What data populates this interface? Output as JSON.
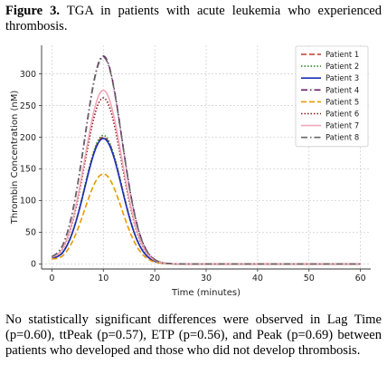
{
  "caption": {
    "figure_label": "Figure 3.",
    "text": " TGA in patients with acute leukemia who experienced thrombosis."
  },
  "note": "No statistically significant differences were observed in Lag Time (p=0.60), ttPeak (p=0.57), ETP (p=0.56), and Peak (p=0.69) between patients who developed and those who did not develop thrombosis.",
  "chart_data": {
    "type": "line",
    "xlabel": "Time (minutes)",
    "ylabel": "Thrombin Concentration (nM)",
    "xlim": [
      -2,
      62
    ],
    "ylim": [
      -8,
      345
    ],
    "xticks": [
      0,
      10,
      20,
      30,
      40,
      50,
      60
    ],
    "yticks": [
      0,
      50,
      100,
      150,
      200,
      250,
      300
    ],
    "grid": true,
    "legend_position": "top-right",
    "curve_shape": "gaussian peak at 10 min, baseline 0 after ~22 min",
    "series": [
      {
        "name": "Patient 1",
        "peak": 200,
        "peak_time": 10,
        "color": "#c0392b",
        "dash": "6,3"
      },
      {
        "name": "Patient 2",
        "peak": 203,
        "peak_time": 10,
        "color": "#2e8b2e",
        "dash": "1.5,2"
      },
      {
        "name": "Patient 3",
        "peak": 198,
        "peak_time": 10,
        "color": "#1c2fb5",
        "dash": ""
      },
      {
        "name": "Patient 4",
        "peak": 328,
        "peak_time": 10,
        "color": "#6a1b6a",
        "dash": "7,3,1.5,3"
      },
      {
        "name": "Patient 5",
        "peak": 142,
        "peak_time": 10,
        "color": "#e69b00",
        "dash": "6,3"
      },
      {
        "name": "Patient 6",
        "peak": 262,
        "peak_time": 10,
        "color": "#8b1a1a",
        "dash": "1.5,2"
      },
      {
        "name": "Patient 7",
        "peak": 274,
        "peak_time": 10,
        "color": "#f4a6b8",
        "dash": ""
      },
      {
        "name": "Patient 8",
        "peak": 326,
        "peak_time": 10,
        "color": "#666666",
        "dash": "7,3,1.5,3"
      }
    ]
  }
}
